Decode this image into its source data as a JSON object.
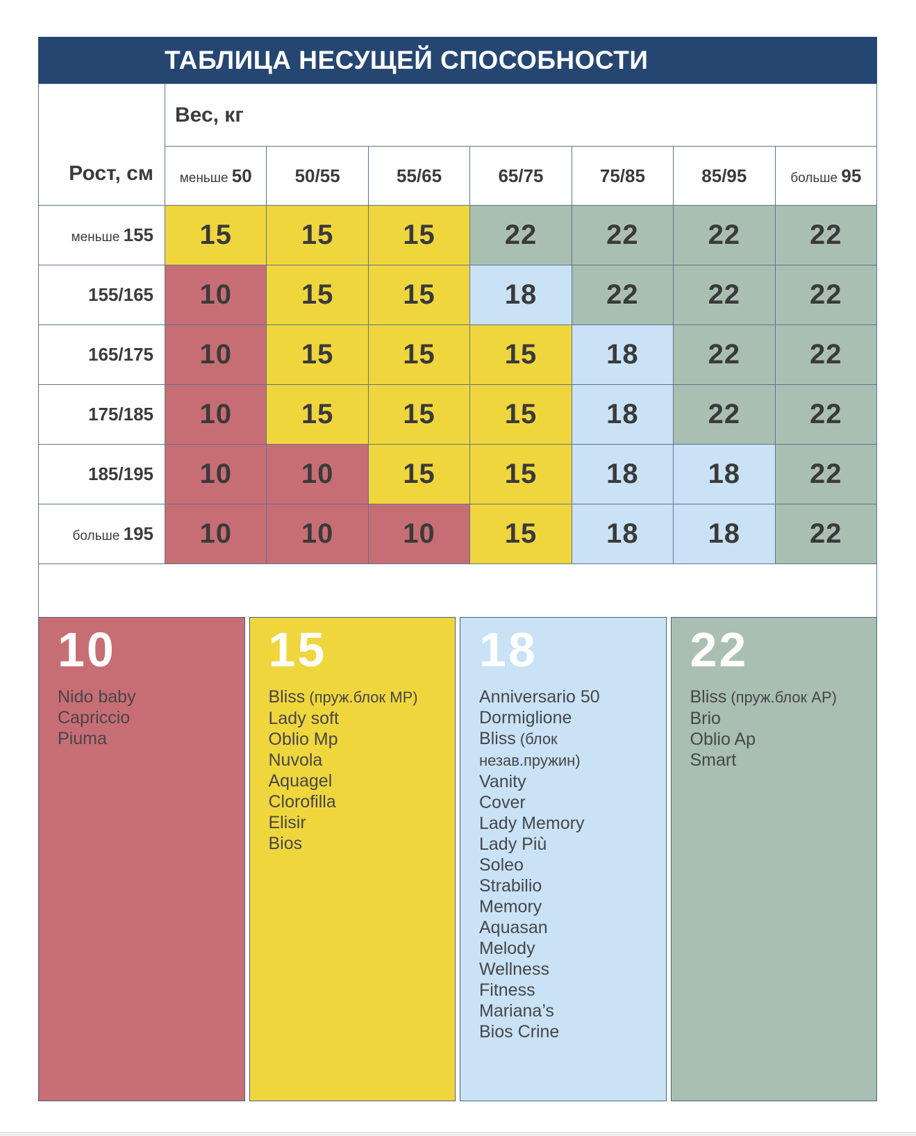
{
  "title": "ТАБЛИЦА НЕСУЩЕЙ СПОСОБНОСТИ",
  "axes": {
    "weight": "Вес, кг",
    "height": "Рост, см"
  },
  "weight_columns": [
    {
      "prefix": "меньше ",
      "label": "50"
    },
    {
      "prefix": "",
      "label": "50/55"
    },
    {
      "prefix": "",
      "label": "55/65"
    },
    {
      "prefix": "",
      "label": "65/75"
    },
    {
      "prefix": "",
      "label": "75/85"
    },
    {
      "prefix": "",
      "label": "85/95"
    },
    {
      "prefix": "больше ",
      "label": "95"
    }
  ],
  "height_rows": [
    {
      "prefix": "меньше ",
      "label": "155",
      "cells": [
        15,
        15,
        15,
        22,
        22,
        22,
        22
      ]
    },
    {
      "prefix": "",
      "label": "155/165",
      "cells": [
        10,
        15,
        15,
        18,
        22,
        22,
        22
      ]
    },
    {
      "prefix": "",
      "label": "165/175",
      "cells": [
        10,
        15,
        15,
        15,
        18,
        22,
        22
      ]
    },
    {
      "prefix": "",
      "label": "175/185",
      "cells": [
        10,
        15,
        15,
        15,
        18,
        22,
        22
      ]
    },
    {
      "prefix": "",
      "label": "185/195",
      "cells": [
        10,
        10,
        15,
        15,
        18,
        18,
        22
      ]
    },
    {
      "prefix": "больше ",
      "label": "195",
      "cells": [
        10,
        10,
        10,
        15,
        18,
        18,
        22
      ]
    }
  ],
  "value_colors": {
    "10": "#c76e74",
    "15": "#f0d63d",
    "18": "#c9e2f5",
    "22": "#a9bfb1"
  },
  "legend": [
    {
      "value": "10",
      "color": "#c76e74",
      "products": [
        {
          "name": "Nido baby"
        },
        {
          "name": "Capriccio"
        },
        {
          "name": "Piuma"
        }
      ]
    },
    {
      "value": "15",
      "color": "#f0d63d",
      "products": [
        {
          "name": "Bliss",
          "note": "(пруж.блок MP)"
        },
        {
          "name": "Lady soft"
        },
        {
          "name": "Oblio Mp"
        },
        {
          "name": "Nuvola"
        },
        {
          "name": "Aquagel"
        },
        {
          "name": "Clorofilla"
        },
        {
          "name": "Elisir"
        },
        {
          "name": "Bios"
        }
      ]
    },
    {
      "value": "18",
      "color": "#c9e2f5",
      "products": [
        {
          "name": "Anniversario 50"
        },
        {
          "name": "Dormiglione"
        },
        {
          "name": "Bliss",
          "note": "(блок незав.пружин)"
        },
        {
          "name": "Vanity"
        },
        {
          "name": "Cover"
        },
        {
          "name": "Lady Memory"
        },
        {
          "name": "Lady Più"
        },
        {
          "name": "Soleo"
        },
        {
          "name": "Strabilio"
        },
        {
          "name": "Memory"
        },
        {
          "name": "Aquasan"
        },
        {
          "name": "Melody"
        },
        {
          "name": "Wellness"
        },
        {
          "name": "Fitness"
        },
        {
          "name": "Mariana’s"
        },
        {
          "name": "Bios Crine"
        }
      ]
    },
    {
      "value": "22",
      "color": "#a9bfb1",
      "products": [
        {
          "name": "Bliss",
          "note": "(пруж.блок AP)"
        },
        {
          "name": "Brio"
        },
        {
          "name": "Oblio Ap"
        },
        {
          "name": "Smart"
        }
      ]
    }
  ],
  "chart_data": {
    "type": "heatmap",
    "title": "ТАБЛИЦА НЕСУЩЕЙ СПОСОБНОСТИ",
    "xlabel": "Вес, кг",
    "ylabel": "Рост, см",
    "x_categories": [
      "меньше 50",
      "50/55",
      "55/65",
      "65/75",
      "75/85",
      "85/95",
      "больше 95"
    ],
    "y_categories": [
      "меньше 155",
      "155/165",
      "165/175",
      "175/185",
      "185/195",
      "больше 195"
    ],
    "values": [
      [
        15,
        15,
        15,
        22,
        22,
        22,
        22
      ],
      [
        10,
        15,
        15,
        18,
        22,
        22,
        22
      ],
      [
        10,
        15,
        15,
        15,
        18,
        22,
        22
      ],
      [
        10,
        15,
        15,
        15,
        18,
        22,
        22
      ],
      [
        10,
        10,
        15,
        15,
        18,
        18,
        22
      ],
      [
        10,
        10,
        10,
        15,
        18,
        18,
        22
      ]
    ],
    "value_colors": {
      "10": "#c76e74",
      "15": "#f0d63d",
      "18": "#c9e2f5",
      "22": "#a9bfb1"
    },
    "legend_position": "bottom",
    "grid": true
  }
}
